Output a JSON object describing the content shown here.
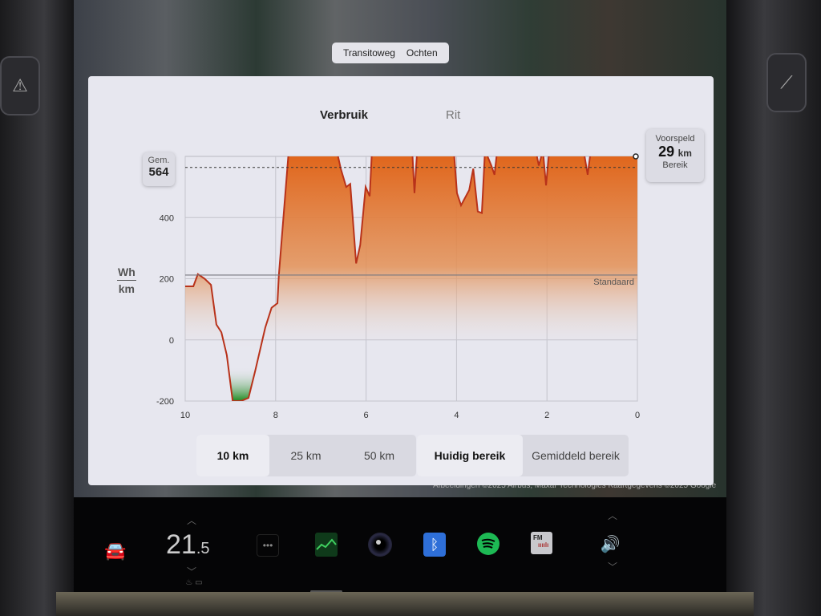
{
  "map": {
    "road_labels": [
      "Transitoweg",
      "Ochten"
    ],
    "attribution": "Afbeeldingen ©2025 Airbus, Maxar Technologies Kaartgegevens ©2025 Google"
  },
  "tabs": [
    {
      "label": "Verbruik",
      "active": true
    },
    {
      "label": "Rit",
      "active": false
    }
  ],
  "average": {
    "label": "Gem.",
    "value": "564"
  },
  "predicted": {
    "label": "Voorspeld",
    "value": "29",
    "unit": "km",
    "sublabel": "Bereik"
  },
  "range_buttons": [
    {
      "label": "10 km",
      "selected": true
    },
    {
      "label": "25 km",
      "selected": false
    },
    {
      "label": "50 km",
      "selected": false
    }
  ],
  "mode_buttons": [
    {
      "label": "Huidig bereik",
      "selected": true
    },
    {
      "label": "Gemiddeld bereik",
      "selected": false
    }
  ],
  "dock": {
    "temperature_int": "21",
    "temperature_dec": ".5",
    "icons": [
      "car-icon",
      "more-icon",
      "energy-app-icon",
      "camera-icon",
      "bluetooth-icon",
      "spotify-icon",
      "radio-icon",
      "volume-icon"
    ],
    "radio_label": "FM"
  },
  "colors": {
    "consumption_fill": "#e0661c",
    "line": "#b8321a",
    "regen_fill": "#1f8a1f",
    "standard_line": "#77777f"
  },
  "chart_data": {
    "type": "area",
    "ylabel_top": "Wh",
    "ylabel_bottom": "km",
    "xlim": [
      10,
      0
    ],
    "ylim": [
      -200,
      600
    ],
    "xticks": [
      "10",
      "8",
      "6",
      "4",
      "2",
      "0"
    ],
    "yticks": [
      "400",
      "200",
      "0",
      "-200"
    ],
    "grid": true,
    "standard": {
      "label": "Standaard",
      "value": 212
    },
    "average_line": 564,
    "x": [
      10,
      9.82,
      9.72,
      9.57,
      9.43,
      9.31,
      9.2,
      9.08,
      8.95,
      8.77,
      8.6,
      8.45,
      8.23,
      8.09,
      7.96,
      7.93,
      7.71,
      6.65,
      6.56,
      6.44,
      6.35,
      6.22,
      6.13,
      6.01,
      5.92,
      5.87,
      4.98,
      4.93,
      4.87,
      4.06,
      3.99,
      3.9,
      3.72,
      3.63,
      3.53,
      3.44,
      3.37,
      3.23,
      3.16,
      3.1,
      2.25,
      2.18,
      2.09,
      2.02,
      1.95,
      1.19,
      1.1,
      1.03,
      0
    ],
    "y": [
      175,
      175,
      215,
      200,
      180,
      50,
      25,
      -50,
      -200,
      -200,
      -190,
      -100,
      40,
      105,
      120,
      210,
      620,
      620,
      560,
      500,
      510,
      250,
      310,
      500,
      470,
      620,
      620,
      480,
      620,
      620,
      480,
      440,
      490,
      560,
      420,
      415,
      620,
      570,
      540,
      620,
      620,
      570,
      620,
      505,
      620,
      620,
      540,
      620,
      620
    ]
  }
}
